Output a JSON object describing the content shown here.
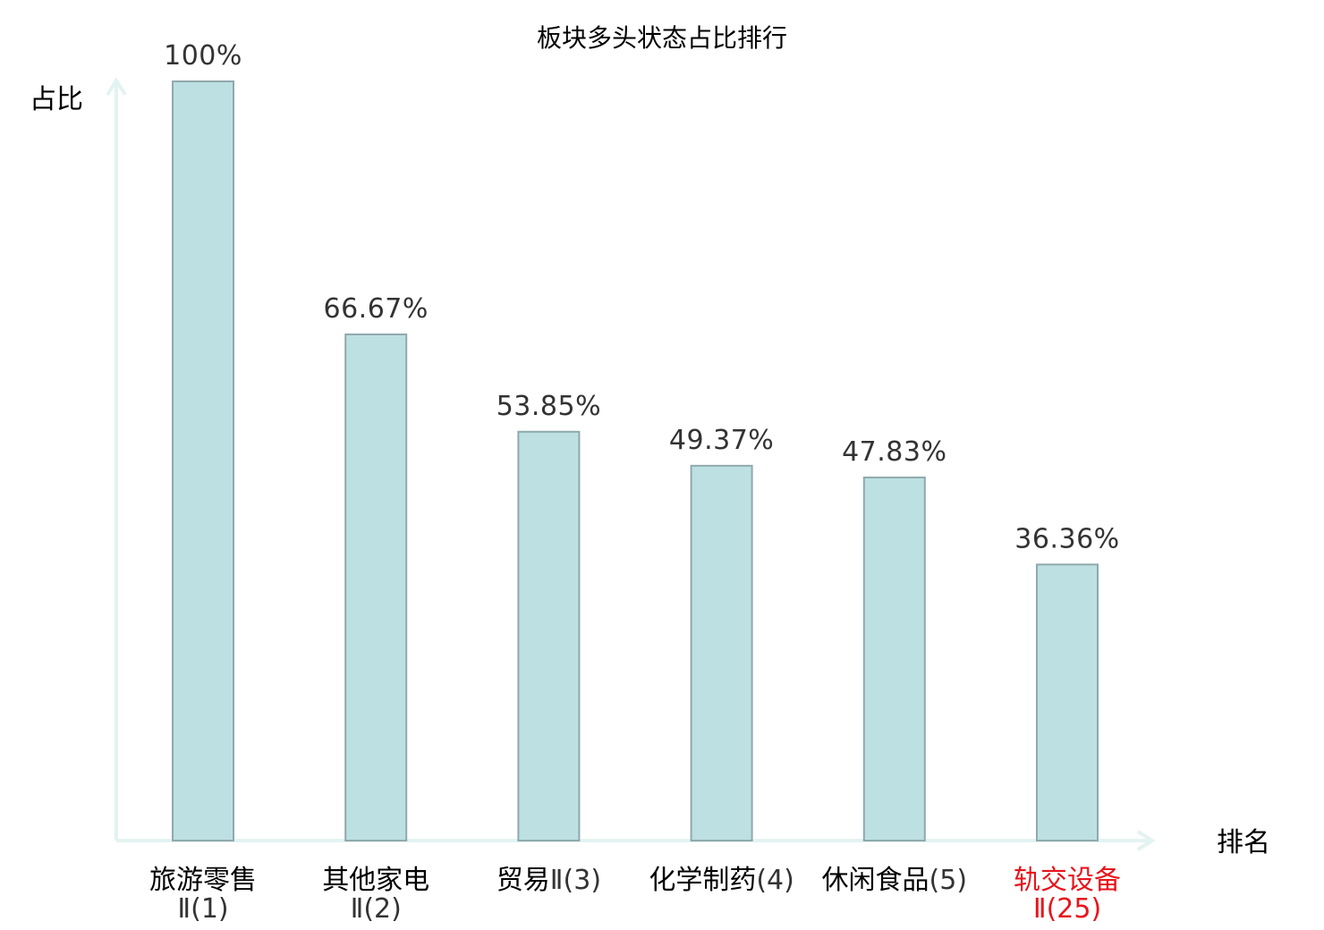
{
  "chart_data": {
    "type": "bar",
    "title": "板块多头状态占比排行",
    "ylabel": "占比",
    "xlabel": "排名",
    "ylim": [
      0,
      100
    ],
    "grid": false,
    "categories": [
      {
        "name": "旅游零售",
        "suffix": "Ⅱ(1)",
        "highlight": false
      },
      {
        "name": "其他家电",
        "suffix": "Ⅱ(2)",
        "highlight": false
      },
      {
        "name": "贸易",
        "suffix": "Ⅱ(3)",
        "highlight": false
      },
      {
        "name": "化学制药",
        "suffix": "(4)",
        "highlight": false
      },
      {
        "name": "休闲食品",
        "suffix": "(5)",
        "highlight": false
      },
      {
        "name": "轨交设备",
        "suffix": "Ⅱ(25)",
        "highlight": true
      }
    ],
    "values": [
      100,
      66.67,
      53.85,
      49.37,
      47.83,
      36.36
    ],
    "value_labels": [
      "100%",
      "66.67%",
      "53.85%",
      "49.37%",
      "47.83%",
      "36.36%"
    ],
    "colors": {
      "bar_fill": "#bde0e3",
      "bar_stroke": "#8fa9ad",
      "axis": "#e3f3f1",
      "highlight_text": "#e8141b"
    }
  }
}
